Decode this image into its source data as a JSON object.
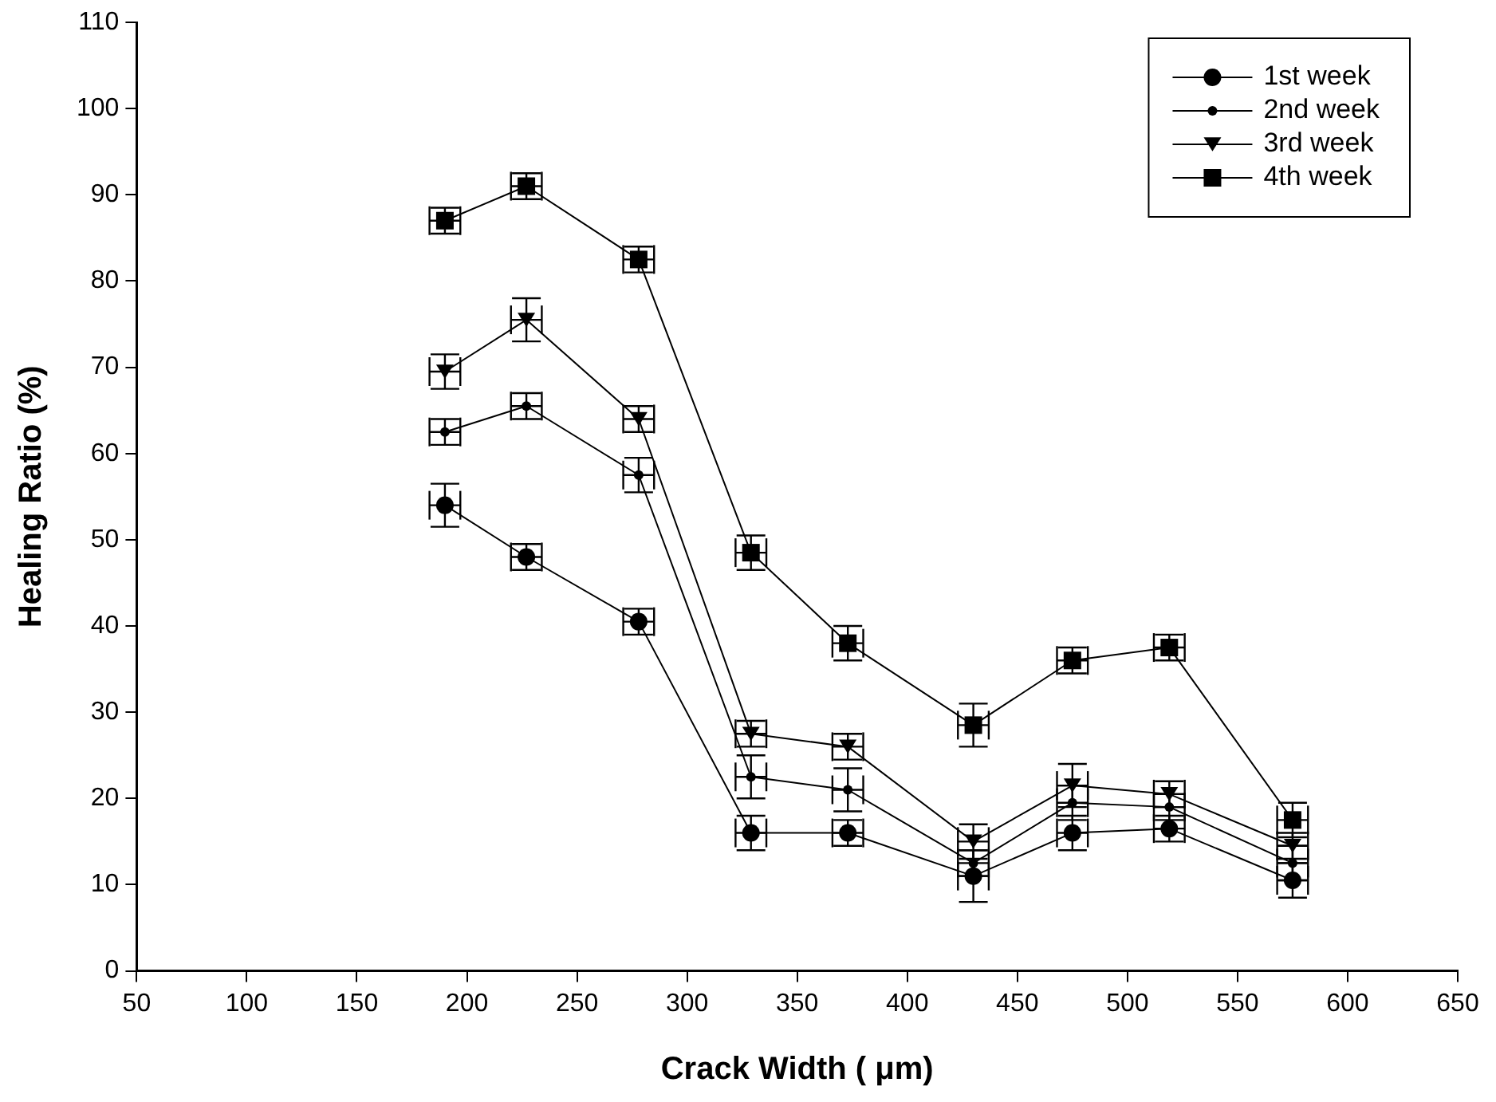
{
  "chart_data": {
    "type": "line",
    "xlabel": "Crack Width ( μm)",
    "ylabel": "Healing Ratio (%)",
    "x": [
      190,
      227,
      278,
      329,
      373,
      430,
      475,
      519,
      575
    ],
    "series": [
      {
        "name": "1st week",
        "color": "#000000",
        "marker": "circle",
        "values": [
          54,
          48,
          40.5,
          16,
          16,
          11,
          16,
          16.5,
          10.5
        ],
        "errors": [
          2.5,
          1.5,
          1.5,
          2,
          1.5,
          3,
          2,
          1.5,
          2
        ],
        "xerrors": [
          7,
          7,
          7,
          7,
          7,
          7,
          7,
          7,
          7
        ]
      },
      {
        "name": "2nd week",
        "color": "#000000",
        "marker": "circle",
        "values": [
          62.5,
          65.5,
          57.5,
          22.5,
          21,
          12.5,
          19.5,
          19,
          12.5
        ],
        "errors": [
          1.5,
          1.5,
          2,
          2.5,
          2.5,
          1.5,
          2,
          1.5,
          2
        ],
        "xerrors": [
          7,
          7,
          7,
          7,
          7,
          7,
          7,
          7,
          7
        ]
      },
      {
        "name": "3rd week",
        "color": "#000000",
        "marker": "triangle",
        "values": [
          69.5,
          75.5,
          64,
          27.5,
          26,
          15,
          21.5,
          20.5,
          14.5
        ],
        "errors": [
          2,
          2.5,
          1.5,
          1.5,
          1.5,
          2,
          2.5,
          1.5,
          1.5
        ],
        "xerrors": [
          7,
          7,
          7,
          7,
          7,
          7,
          7,
          7,
          7
        ]
      },
      {
        "name": "4th week",
        "color": "#000000",
        "marker": "square",
        "values": [
          87,
          91,
          82.5,
          48.5,
          38,
          28.5,
          36,
          37.5,
          17.5
        ],
        "errors": [
          1.5,
          1.5,
          1.5,
          2,
          2,
          2.5,
          1.5,
          1.5,
          2
        ],
        "xerrors": [
          7,
          7,
          7,
          7,
          7,
          7,
          7,
          7,
          7
        ]
      }
    ],
    "xlim": [
      50,
      650
    ],
    "xticks": [
      50,
      100,
      150,
      200,
      250,
      300,
      350,
      400,
      450,
      500,
      550,
      600,
      650
    ],
    "ylim": [
      0,
      110
    ],
    "yticks": [
      0,
      10,
      20,
      30,
      40,
      50,
      60,
      70,
      80,
      90,
      100,
      110
    ],
    "grid": false,
    "legend": "top right",
    "line_style": "solid"
  }
}
